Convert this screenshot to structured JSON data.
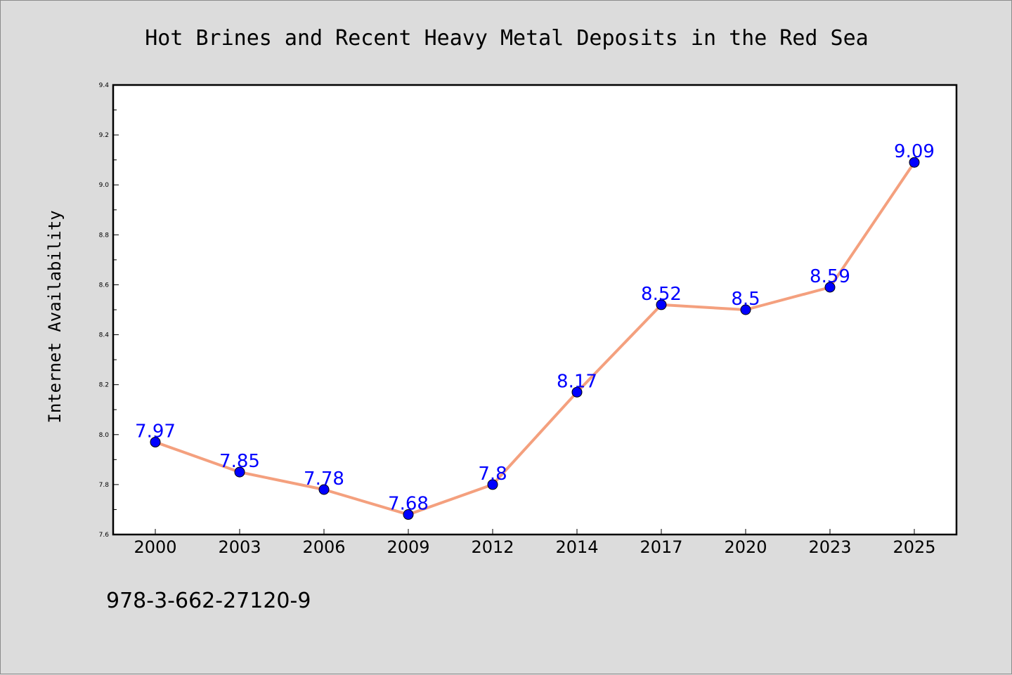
{
  "chart_data": {
    "type": "line",
    "title": "Hot Brines and Recent Heavy Metal Deposits in the Red Sea",
    "xlabel": "",
    "ylabel": "Internet Availability",
    "categories": [
      "2000",
      "2003",
      "2006",
      "2009",
      "2012",
      "2014",
      "2017",
      "2020",
      "2023",
      "2025"
    ],
    "series": [
      {
        "values": [
          7.97,
          7.85,
          7.78,
          7.68,
          7.8,
          8.17,
          8.52,
          8.5,
          8.59,
          9.09
        ],
        "data_labels": [
          "7.97",
          "7.85",
          "7.78",
          "7.68",
          "7.8",
          "8.17",
          "8.52",
          "8.5",
          "8.59",
          "9.09"
        ],
        "line_color": "#f4a07e",
        "marker_color": "#0000ff"
      }
    ],
    "ylim": [
      7.6,
      9.4
    ],
    "yticks": [
      "7.6",
      "7.8",
      "8.0",
      "8.2",
      "8.4",
      "8.6",
      "8.8",
      "9.0",
      "9.2",
      "9.4"
    ],
    "grid": false,
    "legend": "none"
  },
  "footer": {
    "text": "978-3-662-27120-9"
  },
  "colors": {
    "background": "#dcdcdc",
    "plot_background": "#ffffff",
    "label_color": "#0000ff"
  }
}
